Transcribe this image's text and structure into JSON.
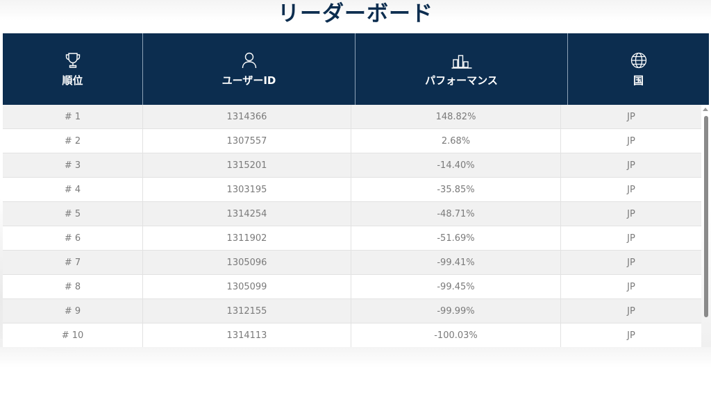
{
  "page": {
    "title": "リーダーボード"
  },
  "table": {
    "headers": [
      {
        "label": "順位",
        "icon": "trophy-icon"
      },
      {
        "label": "ユーザーID",
        "icon": "user-icon"
      },
      {
        "label": "パフォーマンス",
        "icon": "bar-chart-icon"
      },
      {
        "label": "国",
        "icon": "globe-icon"
      }
    ],
    "rows": [
      {
        "rank": "# 1",
        "user_id": "1314366",
        "performance": "148.82%",
        "country": "JP"
      },
      {
        "rank": "# 2",
        "user_id": "1307557",
        "performance": "2.68%",
        "country": "JP"
      },
      {
        "rank": "# 3",
        "user_id": "1315201",
        "performance": "-14.40%",
        "country": "JP"
      },
      {
        "rank": "# 4",
        "user_id": "1303195",
        "performance": "-35.85%",
        "country": "JP"
      },
      {
        "rank": "# 5",
        "user_id": "1314254",
        "performance": "-48.71%",
        "country": "JP"
      },
      {
        "rank": "# 6",
        "user_id": "1311902",
        "performance": "-51.69%",
        "country": "JP"
      },
      {
        "rank": "# 7",
        "user_id": "1305096",
        "performance": "-99.41%",
        "country": "JP"
      },
      {
        "rank": "# 8",
        "user_id": "1305099",
        "performance": "-99.45%",
        "country": "JP"
      },
      {
        "rank": "# 9",
        "user_id": "1312155",
        "performance": "-99.99%",
        "country": "JP"
      },
      {
        "rank": "# 10",
        "user_id": "1314113",
        "performance": "-100.03%",
        "country": "JP"
      }
    ]
  },
  "colors": {
    "header_bg": "#0c2d4f",
    "title_text": "#0c2d4f",
    "row_alt_bg": "#f1f1f1",
    "cell_text": "#7a7a7a"
  }
}
